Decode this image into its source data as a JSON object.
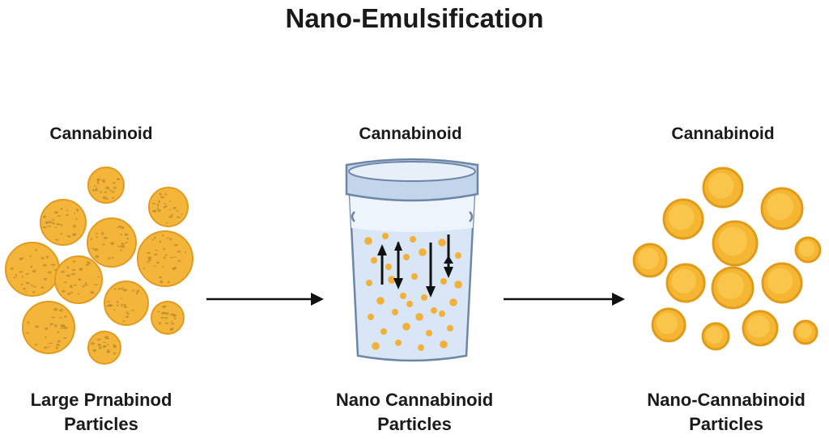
{
  "title": "Nano-Emulsification",
  "panels": [
    {
      "label": "Cannabinoid",
      "caption_line1": "Large Prnabinod",
      "caption_line2": "Particles"
    },
    {
      "label": "Cannabinoid",
      "caption_line1": "Nano Cannabinoid",
      "caption_line2": "Particles"
    },
    {
      "label": "Cannabinoid",
      "caption_line1": "Nano-Cannabinoid",
      "caption_line2": "Particles"
    }
  ],
  "colors": {
    "particle_fill": "#f4b63a",
    "particle_stroke": "#e29a1f",
    "particle_speckle": "#b98a2e",
    "nano_fill": "#f5b733",
    "nano_stroke": "#e19b18",
    "nano_highlight": "#fbd25c",
    "cup_liquid": "#d8e6f6",
    "cup_outline": "#6d86a6",
    "cup_rim": "#c3d5ea",
    "arrow": "#111111"
  },
  "icons": {
    "process_arrow": "right-arrow-icon",
    "mixing_arrows": "up-down-arrows-icon"
  }
}
